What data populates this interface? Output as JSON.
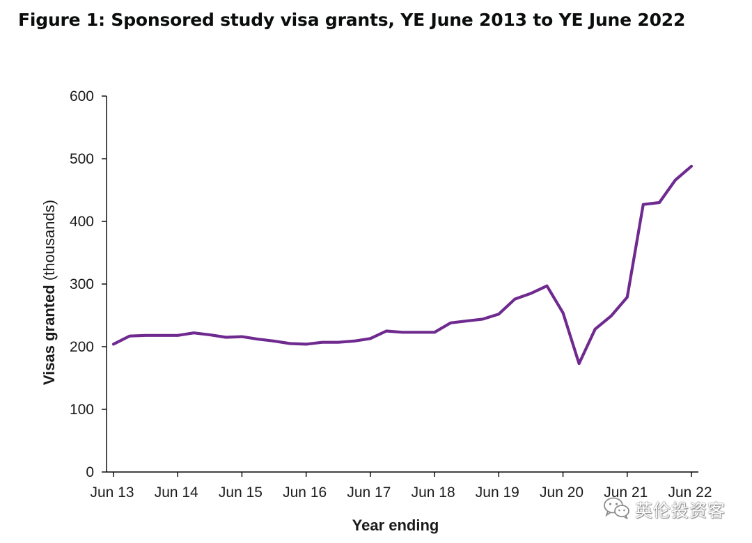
{
  "title": "Figure 1: Sponsored study visa grants, YE June 2013 to YE June 2022",
  "watermark": {
    "text": "英伦投资客",
    "icon": "wechat-icon"
  },
  "colors": {
    "series": "#6f2a8f",
    "axis": "#000000",
    "text": "#1a1a1a"
  },
  "chart_data": {
    "type": "line",
    "title": "Figure 1: Sponsored study visa grants, YE June 2013 to YE June 2022",
    "xlabel": "Year ending",
    "ylabel_bold": "Visas granted",
    "ylabel_rest": " (thousands)",
    "ylim": [
      0,
      600
    ],
    "yticks": [
      0,
      100,
      200,
      300,
      400,
      500,
      600
    ],
    "xtick_labels": [
      "Jun 13",
      "Jun 14",
      "Jun 15",
      "Jun 16",
      "Jun 17",
      "Jun 18",
      "Jun 19",
      "Jun 20",
      "Jun 21",
      "Jun 22"
    ],
    "grid": false,
    "legend": false,
    "series": [
      {
        "x": [
          "Jun 13",
          "Sep 13",
          "Dec 13",
          "Mar 14",
          "Jun 14",
          "Sep 14",
          "Dec 14",
          "Mar 15",
          "Jun 15",
          "Sep 15",
          "Dec 15",
          "Mar 16",
          "Jun 16",
          "Sep 16",
          "Dec 16",
          "Mar 17",
          "Jun 17",
          "Sep 17",
          "Dec 17",
          "Mar 18",
          "Jun 18",
          "Sep 18",
          "Dec 18",
          "Mar 19",
          "Jun 19",
          "Sep 19",
          "Dec 19",
          "Mar 20",
          "Jun 20",
          "Sep 20",
          "Dec 20",
          "Mar 21",
          "Jun 21",
          "Sep 21",
          "Dec 21",
          "Mar 22",
          "Jun 22"
        ],
        "values": [
          204,
          217,
          218,
          218,
          218,
          222,
          219,
          215,
          216,
          212,
          209,
          205,
          204,
          207,
          207,
          209,
          213,
          225,
          223,
          223,
          223,
          238,
          241,
          244,
          252,
          276,
          285,
          297,
          254,
          173,
          228,
          249,
          279,
          427,
          430,
          466,
          488
        ]
      }
    ]
  }
}
